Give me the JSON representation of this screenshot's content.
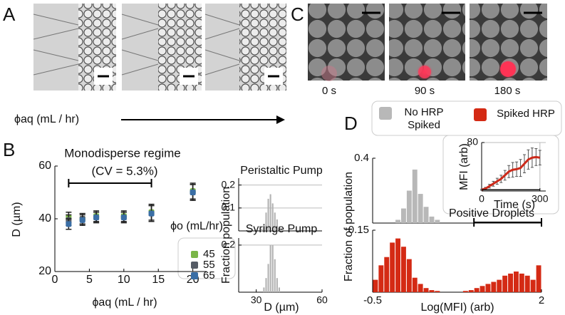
{
  "panel_labels": [
    "A",
    "B",
    "C",
    "D"
  ],
  "panel_a": {
    "axis_label": "ϕaq (mL / hr)"
  },
  "panel_c": {
    "time_labels": [
      "0 s",
      "90 s",
      "180 s"
    ]
  },
  "chart_data": [
    {
      "type": "scatter",
      "annotations": [
        "Monodisperse regime",
        "(CV = 5.3%)"
      ],
      "x_label": "ϕaq (mL / hr)",
      "y_label": "D (µm)",
      "legend_title": "ϕo (mL/hr)",
      "xlim": [
        0,
        22
      ],
      "xticks": [
        0,
        5,
        10,
        15,
        20
      ],
      "ylim": [
        20,
        60
      ],
      "yticks": [
        20,
        40,
        60
      ],
      "x": [
        2,
        4,
        6,
        10,
        14,
        20
      ],
      "series": [
        {
          "name": "45",
          "color": "#7ab648",
          "values": [
            40.5,
            40,
            41,
            41,
            42.5,
            50.5
          ],
          "errors": [
            2,
            2,
            2,
            2,
            3,
            3
          ]
        },
        {
          "name": "55",
          "color": "#555c66",
          "values": [
            39.5,
            40,
            40.5,
            40.5,
            42,
            50
          ],
          "errors": [
            2,
            2,
            2,
            2,
            3,
            3
          ]
        },
        {
          "name": "65",
          "color": "#3a6ea5",
          "values": [
            38,
            39.5,
            40.5,
            40.5,
            42,
            50
          ],
          "errors": [
            2,
            2,
            2,
            2,
            3,
            3
          ]
        }
      ]
    },
    {
      "type": "histogram",
      "title": "Peristaltic Pump",
      "y_label": "Fraction population",
      "color": "#b3b3b3",
      "grid": true,
      "xlim": [
        22,
        60
      ],
      "ylim": [
        0,
        0.23
      ],
      "yticks": [
        0.1,
        0.2
      ],
      "bins": [
        32,
        33,
        34,
        35,
        36,
        37,
        38,
        39,
        40,
        41,
        42
      ],
      "values": [
        0.01,
        0.03,
        0.08,
        0.14,
        0.16,
        0.12,
        0.08,
        0.05,
        0.02,
        0.01
      ]
    },
    {
      "type": "histogram",
      "title": "Syringe Pump",
      "x_label": "D (µm)",
      "color": "#b3b3b3",
      "grid": true,
      "xlim": [
        22,
        60
      ],
      "xticks": [
        30,
        60
      ],
      "ylim": [
        0,
        0.23
      ],
      "yticks": [
        0.2
      ],
      "bins": [
        33,
        34,
        35,
        36,
        37,
        38,
        39,
        40,
        41
      ],
      "values": [
        0.02,
        0.06,
        0.12,
        0.2,
        0.2,
        0.14,
        0.06,
        0.02
      ]
    },
    {
      "type": "line",
      "x_label": "Time (s)",
      "y_label": "MFI (arb)",
      "grid": true,
      "xlim": [
        0,
        330
      ],
      "xticks": [
        0,
        300
      ],
      "ylim": [
        0,
        80
      ],
      "yticks": [
        80
      ],
      "x": [
        0,
        20,
        40,
        60,
        80,
        100,
        120,
        140,
        160,
        180,
        200,
        220,
        240,
        260,
        280,
        300
      ],
      "series": [
        {
          "color": "#cc2a1a",
          "values": [
            2,
            4,
            8,
            12,
            16,
            20,
            26,
            32,
            35,
            36,
            38,
            45,
            52,
            55,
            56,
            55
          ],
          "errors": [
            1,
            2,
            3,
            4,
            5,
            6,
            8,
            10,
            12,
            12,
            14,
            15,
            16,
            16,
            14,
            12
          ]
        },
        {
          "color": "#111111",
          "values": [
            2,
            2,
            2,
            2,
            2,
            2,
            2,
            2,
            2,
            2,
            2,
            2,
            2,
            2,
            2,
            2
          ]
        }
      ]
    },
    {
      "type": "histogram",
      "name": "No HRP Spiked",
      "y_label": "Fraction of population",
      "color": "#b8b8b8",
      "xlim": [
        -0.5,
        2
      ],
      "ylim": [
        0,
        0.4
      ],
      "yticks": [
        0.4
      ],
      "bins": [
        -0.1667,
        -0.0833,
        0,
        0.0833,
        0.1667,
        0.25,
        0.3333,
        0.4167,
        0.5
      ],
      "values": [
        0.02,
        0.09,
        0.2,
        0.33,
        0.18,
        0.1,
        0.04,
        0.02
      ]
    },
    {
      "type": "histogram",
      "name": "Spiked HRP",
      "x_label": "Log(MFI) (arb)",
      "annotation": "Positive Droplets",
      "color": "#d42a14",
      "xlim": [
        -0.5,
        2
      ],
      "xticks": [
        -0.5,
        2
      ],
      "ylim": [
        0,
        0.15
      ],
      "yticks": [
        0.15
      ],
      "bins": [
        -0.5,
        -0.4167,
        -0.3333,
        -0.25,
        -0.1667,
        -0.0833,
        0,
        0.0833,
        0.1667,
        0.25,
        0.3333,
        0.4167,
        0.5,
        0.5833,
        0.6667,
        0.75,
        0.8333,
        0.9167,
        1,
        1.0833,
        1.1667,
        1.25,
        1.3333,
        1.4167,
        1.5,
        1.5833,
        1.6667,
        1.75,
        1.8333,
        1.9167,
        2
      ],
      "values": [
        0.03,
        0.065,
        0.085,
        0.12,
        0.13,
        0.11,
        0.08,
        0.035,
        0.02,
        0.01,
        0.005,
        0.003,
        0,
        0,
        0,
        0,
        0.003,
        0.005,
        0.01,
        0.015,
        0.02,
        0.025,
        0.03,
        0.04,
        0.045,
        0.05,
        0.045,
        0.04,
        0.03,
        0.065
      ]
    }
  ]
}
